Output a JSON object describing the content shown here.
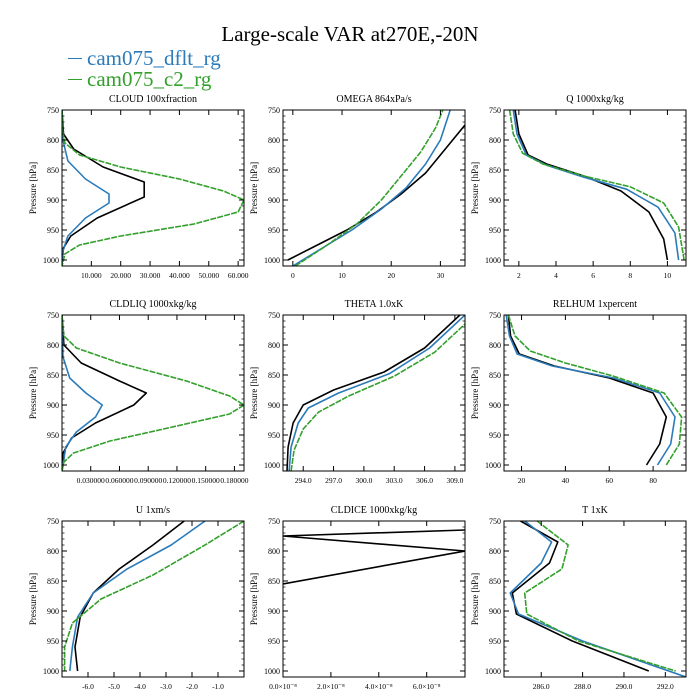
{
  "title": "Large-scale VAR at270E,-20N",
  "legend": [
    {
      "name": "cam075_dflt_rg",
      "color": "#2b7bba"
    },
    {
      "name": "cam075_c2_rg",
      "color": "#33a02c"
    }
  ],
  "colors": {
    "series_1": "#000000",
    "series_2": "#2b7bba",
    "series_3": "#33a02c"
  },
  "chart_data": [
    {
      "type": "line",
      "title": "CLOUD  100xfraction",
      "ylabel": "Pressure [hPa]",
      "ylim": [
        1010,
        750
      ],
      "yticks": [
        750,
        800,
        850,
        900,
        950,
        1000
      ],
      "xlim": [
        0,
        62
      ],
      "xticks": [
        10,
        20,
        30,
        40,
        50,
        60
      ],
      "xticklabels": [
        "10.000",
        "20.000",
        "30.000",
        "40.000",
        "50.000",
        "60.000"
      ],
      "series": [
        {
          "color": "#000000",
          "x": [
            0,
            0.5,
            4,
            14,
            28,
            28,
            12,
            3,
            0.5,
            0,
            0
          ],
          "y": [
            750,
            790,
            815,
            845,
            870,
            895,
            930,
            960,
            980,
            1000,
            1010
          ]
        },
        {
          "color": "#2b7bba",
          "x": [
            0,
            0.3,
            2,
            8,
            16,
            16,
            8,
            2,
            0.3,
            0
          ],
          "y": [
            750,
            800,
            835,
            865,
            890,
            905,
            930,
            960,
            985,
            1010
          ]
        },
        {
          "color": "#33a02c",
          "x": [
            0,
            0.2,
            1,
            6,
            20,
            40,
            55,
            62,
            60,
            45,
            20,
            6,
            1,
            0
          ],
          "y": [
            750,
            785,
            805,
            825,
            845,
            865,
            885,
            900,
            920,
            940,
            960,
            975,
            990,
            1010
          ]
        }
      ]
    },
    {
      "type": "line",
      "title": "OMEGA  864xPa/s",
      "ylabel": "Pressure [hPa]",
      "ylim": [
        1010,
        750
      ],
      "yticks": [
        750,
        800,
        850,
        900,
        950,
        1000
      ],
      "xlim": [
        -2,
        35
      ],
      "xticks": [
        0,
        10,
        20,
        30
      ],
      "xticklabels": [
        "0",
        "10",
        "20",
        "30"
      ],
      "series": [
        {
          "color": "#000000",
          "x": [
            -1,
            5,
            11,
            17,
            22,
            27,
            31,
            35
          ],
          "y": [
            1000,
            975,
            950,
            920,
            890,
            855,
            815,
            775
          ]
        },
        {
          "color": "#2b7bba",
          "x": [
            0,
            6,
            12,
            18,
            23,
            27,
            30,
            32
          ],
          "y": [
            1010,
            980,
            950,
            915,
            880,
            840,
            800,
            750
          ]
        },
        {
          "color": "#33a02c",
          "x": [
            0.5,
            7,
            13,
            18,
            22,
            26,
            29,
            30.5
          ],
          "y": [
            1010,
            975,
            940,
            900,
            860,
            820,
            780,
            750
          ]
        }
      ]
    },
    {
      "type": "line",
      "title": "Q  1000xkg/kg",
      "ylabel": "Pressure [hPa]",
      "ylim": [
        1010,
        750
      ],
      "yticks": [
        750,
        800,
        850,
        900,
        950,
        1000
      ],
      "xlim": [
        1.2,
        11
      ],
      "xticks": [
        2,
        4,
        6,
        8,
        10
      ],
      "xticklabels": [
        "2",
        "4",
        "6",
        "8",
        "10"
      ],
      "series": [
        {
          "color": "#000000",
          "x": [
            1.8,
            2.0,
            2.5,
            3.5,
            5.5,
            7.5,
            9.0,
            9.8,
            10.0
          ],
          "y": [
            750,
            790,
            825,
            840,
            860,
            885,
            920,
            965,
            1000
          ]
        },
        {
          "color": "#2b7bba",
          "x": [
            1.7,
            1.9,
            2.4,
            3.5,
            5.5,
            7.8,
            9.5,
            10.4,
            10.6
          ],
          "y": [
            750,
            790,
            825,
            842,
            862,
            882,
            912,
            955,
            1000
          ]
        },
        {
          "color": "#33a02c",
          "x": [
            1.5,
            1.7,
            2.2,
            3.3,
            5.5,
            8.0,
            9.8,
            10.6,
            10.9
          ],
          "y": [
            750,
            790,
            822,
            840,
            860,
            878,
            905,
            945,
            1000
          ]
        }
      ]
    },
    {
      "type": "line",
      "title": "CLDLIQ  1000xkg/kg",
      "ylabel": "Pressure [hPa]",
      "ylim": [
        1010,
        750
      ],
      "yticks": [
        750,
        800,
        850,
        900,
        950,
        1000
      ],
      "xlim": [
        0,
        0.19
      ],
      "xticks": [
        0.03,
        0.06,
        0.09,
        0.12,
        0.15,
        0.18
      ],
      "xticklabels": [
        "0.030000",
        "0.060000",
        "0.090000",
        "0.120000",
        "0.150000",
        "0.180000"
      ],
      "series": [
        {
          "color": "#000000",
          "x": [
            0,
            0.002,
            0.02,
            0.06,
            0.088,
            0.075,
            0.035,
            0.01,
            0.001,
            0
          ],
          "y": [
            750,
            800,
            830,
            860,
            880,
            900,
            930,
            955,
            980,
            1010
          ]
        },
        {
          "color": "#2b7bba",
          "x": [
            0,
            0.001,
            0.008,
            0.025,
            0.042,
            0.035,
            0.015,
            0.004,
            0
          ],
          "y": [
            750,
            820,
            855,
            880,
            900,
            920,
            945,
            970,
            1010
          ]
        },
        {
          "color": "#33a02c",
          "x": [
            0,
            0.002,
            0.015,
            0.06,
            0.13,
            0.175,
            0.19,
            0.175,
            0.12,
            0.05,
            0.012,
            0.002,
            0
          ],
          "y": [
            750,
            785,
            805,
            830,
            860,
            885,
            900,
            915,
            935,
            960,
            980,
            995,
            1010
          ]
        }
      ]
    },
    {
      "type": "line",
      "title": "THETA  1.0xK",
      "ylabel": "Pressure [hPa]",
      "ylim": [
        1010,
        750
      ],
      "yticks": [
        750,
        800,
        850,
        900,
        950,
        1000
      ],
      "xlim": [
        292,
        310
      ],
      "xticks": [
        294,
        297,
        300,
        303,
        306,
        309
      ],
      "xticklabels": [
        "294.0",
        "297.0",
        "300.0",
        "303.0",
        "306.0",
        "309.0"
      ],
      "series": [
        {
          "color": "#000000",
          "x": [
            292.4,
            292.5,
            293,
            294,
            297,
            302,
            306,
            309.5
          ],
          "y": [
            1010,
            970,
            930,
            900,
            875,
            845,
            805,
            750
          ]
        },
        {
          "color": "#2b7bba",
          "x": [
            292.6,
            292.8,
            293.5,
            294.5,
            297.5,
            302.5,
            306.5,
            310
          ],
          "y": [
            1010,
            970,
            930,
            905,
            880,
            848,
            805,
            750
          ]
        },
        {
          "color": "#33a02c",
          "x": [
            292.8,
            293.1,
            294,
            295.5,
            298.5,
            303,
            307,
            310
          ],
          "y": [
            1010,
            975,
            940,
            912,
            885,
            852,
            812,
            765
          ]
        }
      ]
    },
    {
      "type": "line",
      "title": "RELHUM  1xpercent",
      "ylabel": "Pressure [hPa]",
      "ylim": [
        1010,
        750
      ],
      "yticks": [
        750,
        800,
        850,
        900,
        950,
        1000
      ],
      "xlim": [
        12,
        95
      ],
      "xticks": [
        20,
        40,
        60,
        80
      ],
      "xticklabels": [
        "20",
        "40",
        "60",
        "80"
      ],
      "series": [
        {
          "color": "#000000",
          "x": [
            14,
            15,
            19,
            35,
            60,
            80,
            86,
            83,
            77
          ],
          "y": [
            750,
            785,
            815,
            835,
            855,
            880,
            920,
            965,
            1000
          ]
        },
        {
          "color": "#2b7bba",
          "x": [
            13,
            14.5,
            18,
            34,
            62,
            83,
            90,
            88,
            82
          ],
          "y": [
            750,
            785,
            815,
            835,
            855,
            880,
            920,
            965,
            1000
          ]
        },
        {
          "color": "#33a02c",
          "x": [
            14,
            17,
            24,
            40,
            62,
            85,
            93,
            92,
            86
          ],
          "y": [
            750,
            785,
            810,
            830,
            852,
            880,
            920,
            965,
            1000
          ]
        }
      ]
    },
    {
      "type": "line",
      "title": "U  1xm/s",
      "ylabel": "Pressure [hPa]",
      "ylim": [
        1010,
        750
      ],
      "yticks": [
        750,
        800,
        850,
        900,
        950,
        1000
      ],
      "xlim": [
        -7,
        0
      ],
      "xticks": [
        -6,
        -5,
        -4,
        -3,
        -2,
        -1
      ],
      "xticklabels": [
        "-6.0",
        "-5.0",
        "-4.0",
        "-3.0",
        "-2.0",
        "-1.0"
      ],
      "series": [
        {
          "color": "#000000",
          "x": [
            -2.3,
            -3.5,
            -4.8,
            -5.8,
            -6.3,
            -6.5,
            -6.4
          ],
          "y": [
            750,
            790,
            830,
            870,
            910,
            960,
            1000
          ]
        },
        {
          "color": "#2b7bba",
          "x": [
            -1.5,
            -2.8,
            -4.5,
            -5.8,
            -6.4,
            -6.6,
            -6.7
          ],
          "y": [
            750,
            790,
            830,
            870,
            910,
            960,
            1000
          ]
        },
        {
          "color": "#33a02c",
          "x": [
            0,
            -1.5,
            -3.5,
            -5.5,
            -6.6,
            -6.9,
            -6.9
          ],
          "y": [
            750,
            790,
            840,
            880,
            920,
            960,
            1000
          ]
        }
      ]
    },
    {
      "type": "line",
      "title": "CLDICE  1000xkg/kg",
      "ylabel": "Pressure [hPa]",
      "ylim": [
        1010,
        750
      ],
      "yticks": [
        750,
        800,
        850,
        900,
        950,
        1000
      ],
      "xlim": [
        0,
        7.6e-08
      ],
      "xticks": [
        0,
        2e-08,
        4e-08,
        6e-08
      ],
      "xticklabels": [
        "0.0×10⁻⁸",
        "2.0×10⁻⁸",
        "4.0×10⁻⁸",
        "6.0×10⁻⁸"
      ],
      "series": [
        {
          "color": "#000000",
          "x": [
            7.6e-08,
            0,
            7.6e-08,
            0
          ],
          "y": [
            765,
            775,
            800,
            855
          ]
        }
      ]
    },
    {
      "type": "line",
      "title": "T  1xK",
      "ylabel": "Pressure [hPa]",
      "ylim": [
        1010,
        750
      ],
      "yticks": [
        750,
        800,
        850,
        900,
        950,
        1000
      ],
      "xlim": [
        284.2,
        293
      ],
      "xticks": [
        286,
        288,
        290,
        292
      ],
      "xticklabels": [
        "286.0",
        "288.0",
        "290.0",
        "292.0"
      ],
      "series": [
        {
          "color": "#000000",
          "x": [
            285.0,
            286.8,
            286.4,
            284.6,
            284.8,
            287.5,
            291.2
          ],
          "y": [
            750,
            785,
            820,
            870,
            905,
            950,
            1000
          ]
        },
        {
          "color": "#2b7bba",
          "x": [
            285.2,
            286.5,
            286.0,
            284.5,
            284.9,
            288.0,
            293.0
          ],
          "y": [
            750,
            785,
            820,
            870,
            905,
            950,
            1010
          ]
        },
        {
          "color": "#33a02c",
          "x": [
            285.8,
            287.3,
            287.0,
            285.2,
            285.3,
            287.8,
            292.5
          ],
          "y": [
            750,
            790,
            830,
            870,
            905,
            950,
            1000
          ]
        }
      ]
    }
  ]
}
